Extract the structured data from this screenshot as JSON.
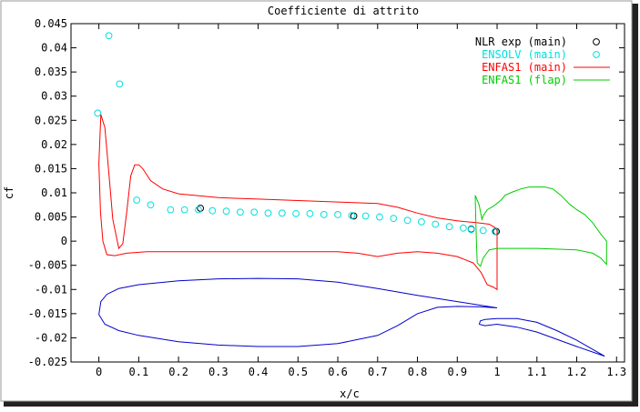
{
  "chart_data": {
    "type": "line",
    "title": "Coefficiente di attrito",
    "xlabel": "x/c",
    "ylabel": "cf",
    "xlim": [
      -0.07,
      1.32
    ],
    "ylim": [
      -0.025,
      0.045
    ],
    "grid": false,
    "legend_position": "top-right",
    "xticks": [
      0,
      0.1,
      0.2,
      0.3,
      0.4,
      0.5,
      0.6,
      0.7,
      0.8,
      0.9,
      1,
      1.1,
      1.2,
      1.3
    ],
    "xtick_labels": [
      "0",
      "0.1",
      "0.2",
      "0.3",
      "0.4",
      "0.5",
      "0.6",
      "0.7",
      "0.8",
      "0.9",
      "1",
      "1.1",
      "1.2",
      "1.3"
    ],
    "yticks": [
      0.045,
      0.04,
      0.035,
      0.03,
      0.025,
      0.02,
      0.015,
      0.01,
      0.005,
      0,
      -0.005,
      -0.01,
      -0.015,
      -0.02,
      -0.025
    ],
    "ytick_labels": [
      "0.045",
      "0.04",
      "0.035",
      "0.03",
      "0.025",
      "0.02",
      "0.015",
      "0.01",
      "0.005",
      "0",
      "-0.005",
      "-0.01",
      "-0.015",
      "-0.02",
      "-0.025"
    ],
    "series": [
      {
        "name": "NLR exp (main)",
        "kind": "points",
        "marker": "circle",
        "color": "#000000",
        "points": [
          [
            0.255,
            0.0068
          ],
          [
            0.64,
            0.0052
          ],
          [
            0.935,
            0.0025
          ],
          [
            0.998,
            0.002
          ]
        ]
      },
      {
        "name": "ENSOLV (main)",
        "kind": "points",
        "marker": "circle",
        "color": "#00e0e0",
        "points": [
          [
            -0.003,
            0.0265
          ],
          [
            0.025,
            0.0425
          ],
          [
            0.052,
            0.0325
          ],
          [
            0.095,
            0.0085
          ],
          [
            0.13,
            0.0075
          ],
          [
            0.18,
            0.0065
          ],
          [
            0.215,
            0.0065
          ],
          [
            0.25,
            0.0065
          ],
          [
            0.285,
            0.0063
          ],
          [
            0.32,
            0.0062
          ],
          [
            0.355,
            0.006
          ],
          [
            0.39,
            0.006
          ],
          [
            0.425,
            0.0058
          ],
          [
            0.46,
            0.0058
          ],
          [
            0.495,
            0.0057
          ],
          [
            0.53,
            0.0057
          ],
          [
            0.565,
            0.0055
          ],
          [
            0.6,
            0.0055
          ],
          [
            0.635,
            0.0053
          ],
          [
            0.67,
            0.0052
          ],
          [
            0.705,
            0.005
          ],
          [
            0.74,
            0.0047
          ],
          [
            0.775,
            0.0043
          ],
          [
            0.81,
            0.004
          ],
          [
            0.845,
            0.0035
          ],
          [
            0.88,
            0.003
          ],
          [
            0.915,
            0.0027
          ],
          [
            0.935,
            0.0024
          ],
          [
            0.965,
            0.0022
          ],
          [
            0.995,
            0.002
          ]
        ]
      },
      {
        "name": "ENFAS1 (main)",
        "kind": "line",
        "color": "#ff0000",
        "points": [
          [
            0.0,
            0.016
          ],
          [
            0.005,
            0.0262
          ],
          [
            0.015,
            0.0235
          ],
          [
            0.025,
            0.014
          ],
          [
            0.035,
            0.0045
          ],
          [
            0.05,
            -0.0015
          ],
          [
            0.06,
            -0.0005
          ],
          [
            0.07,
            0.006
          ],
          [
            0.08,
            0.0135
          ],
          [
            0.09,
            0.0158
          ],
          [
            0.1,
            0.0158
          ],
          [
            0.11,
            0.015
          ],
          [
            0.13,
            0.0125
          ],
          [
            0.16,
            0.0108
          ],
          [
            0.2,
            0.0098
          ],
          [
            0.3,
            0.009
          ],
          [
            0.4,
            0.0087
          ],
          [
            0.5,
            0.0084
          ],
          [
            0.6,
            0.0081
          ],
          [
            0.7,
            0.0078
          ],
          [
            0.75,
            0.007
          ],
          [
            0.8,
            0.0058
          ],
          [
            0.85,
            0.0048
          ],
          [
            0.9,
            0.0042
          ],
          [
            0.95,
            0.0038
          ],
          [
            0.98,
            0.0035
          ],
          [
            0.995,
            0.0028
          ],
          [
            1.0,
            0.0022
          ],
          [
            1.0,
            -0.01
          ],
          [
            0.99,
            -0.0095
          ],
          [
            0.975,
            -0.009
          ],
          [
            0.96,
            -0.0065
          ],
          [
            0.94,
            -0.0045
          ],
          [
            0.9,
            -0.0032
          ],
          [
            0.85,
            -0.0025
          ],
          [
            0.8,
            -0.0022
          ],
          [
            0.75,
            -0.0025
          ],
          [
            0.7,
            -0.0032
          ],
          [
            0.65,
            -0.0025
          ],
          [
            0.6,
            -0.0022
          ],
          [
            0.5,
            -0.0022
          ],
          [
            0.4,
            -0.0022
          ],
          [
            0.3,
            -0.0022
          ],
          [
            0.2,
            -0.0022
          ],
          [
            0.12,
            -0.0022
          ],
          [
            0.07,
            -0.0025
          ],
          [
            0.04,
            -0.003
          ],
          [
            0.02,
            -0.0028
          ],
          [
            0.01,
            0.0
          ],
          [
            0.004,
            0.006
          ],
          [
            0.0,
            0.016
          ]
        ]
      },
      {
        "name": "ENFAS1 (flap)",
        "kind": "line",
        "color": "#00cc00",
        "points": [
          [
            0.945,
            0.0095
          ],
          [
            0.955,
            0.0075
          ],
          [
            0.962,
            0.0045
          ],
          [
            0.965,
            0.0052
          ],
          [
            0.975,
            0.0065
          ],
          [
            0.99,
            0.0072
          ],
          [
            1.01,
            0.0085
          ],
          [
            1.02,
            0.0095
          ],
          [
            1.04,
            0.0102
          ],
          [
            1.06,
            0.0108
          ],
          [
            1.08,
            0.0112
          ],
          [
            1.1,
            0.0112
          ],
          [
            1.12,
            0.0112
          ],
          [
            1.14,
            0.0108
          ],
          [
            1.16,
            0.0095
          ],
          [
            1.18,
            0.0078
          ],
          [
            1.2,
            0.0065
          ],
          [
            1.22,
            0.0055
          ],
          [
            1.24,
            0.0038
          ],
          [
            1.26,
            0.0015
          ],
          [
            1.275,
            0.0
          ],
          [
            1.275,
            -0.0048
          ],
          [
            1.26,
            -0.0035
          ],
          [
            1.24,
            -0.0025
          ],
          [
            1.2,
            -0.0018
          ],
          [
            1.1,
            -0.0015
          ],
          [
            1.05,
            -0.0015
          ],
          [
            1.0,
            -0.0015
          ],
          [
            0.98,
            -0.0018
          ],
          [
            0.965,
            -0.0035
          ],
          [
            0.958,
            -0.0052
          ],
          [
            0.95,
            -0.0045
          ],
          [
            0.948,
            0.0
          ],
          [
            0.946,
            0.006
          ],
          [
            0.945,
            0.0095
          ]
        ]
      },
      {
        "name": "",
        "kind": "line",
        "color": "#0000cc",
        "points": [
          [
            0.0,
            -0.0152
          ],
          [
            0.005,
            -0.0125
          ],
          [
            0.02,
            -0.011
          ],
          [
            0.05,
            -0.0098
          ],
          [
            0.1,
            -0.009
          ],
          [
            0.2,
            -0.0082
          ],
          [
            0.3,
            -0.0078
          ],
          [
            0.4,
            -0.0077
          ],
          [
            0.5,
            -0.0078
          ],
          [
            0.6,
            -0.0085
          ],
          [
            0.7,
            -0.0098
          ],
          [
            0.8,
            -0.0112
          ],
          [
            0.9,
            -0.0125
          ],
          [
            1.0,
            -0.0138
          ],
          [
            0.96,
            -0.0136
          ],
          [
            0.9,
            -0.0135
          ],
          [
            0.85,
            -0.0137
          ],
          [
            0.8,
            -0.015
          ],
          [
            0.75,
            -0.0175
          ],
          [
            0.7,
            -0.0195
          ],
          [
            0.6,
            -0.0212
          ],
          [
            0.5,
            -0.0218
          ],
          [
            0.4,
            -0.0218
          ],
          [
            0.3,
            -0.0215
          ],
          [
            0.2,
            -0.0208
          ],
          [
            0.1,
            -0.0195
          ],
          [
            0.05,
            -0.0185
          ],
          [
            0.015,
            -0.0172
          ],
          [
            0.0,
            -0.0152
          ]
        ]
      },
      {
        "name": "",
        "kind": "line",
        "color": "#0000cc",
        "points": [
          [
            0.955,
            -0.0172
          ],
          [
            0.958,
            -0.0165
          ],
          [
            0.97,
            -0.0162
          ],
          [
            1.0,
            -0.016
          ],
          [
            1.05,
            -0.016
          ],
          [
            1.1,
            -0.0168
          ],
          [
            1.15,
            -0.0185
          ],
          [
            1.2,
            -0.0205
          ],
          [
            1.27,
            -0.0238
          ],
          [
            1.2,
            -0.0218
          ],
          [
            1.1,
            -0.0188
          ],
          [
            1.05,
            -0.0178
          ],
          [
            1.0,
            -0.0172
          ],
          [
            0.97,
            -0.0175
          ],
          [
            0.955,
            -0.0172
          ]
        ]
      }
    ]
  }
}
